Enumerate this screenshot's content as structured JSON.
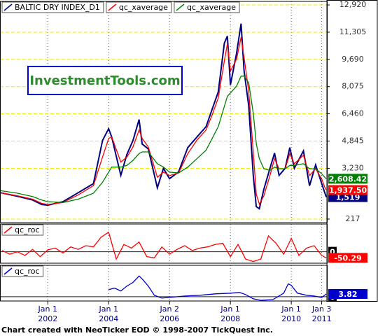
{
  "chart_data": [
    {
      "type": "line",
      "xlim": [
        2000.43,
        2011.17
      ],
      "ylim": [
        7,
        13130
      ],
      "grid": true,
      "yticks": [
        {
          "value": 217,
          "label": "217"
        },
        {
          "value": 3230,
          "label": "3,230"
        },
        {
          "value": 4845,
          "label": "4,845"
        },
        {
          "value": 6460,
          "label": "6,460"
        },
        {
          "value": 8075,
          "label": "8,075"
        },
        {
          "value": 9690,
          "label": "9,690"
        },
        {
          "value": 11305,
          "label": "11,305"
        },
        {
          "value": 12920,
          "label": "12,920"
        }
      ],
      "xticks": [
        {
          "value": 2002.0,
          "label": [
            "Jan 1",
            "2002"
          ]
        },
        {
          "value": 2004.0,
          "label": [
            "Jan 1",
            "2004"
          ]
        },
        {
          "value": 2006.0,
          "label": [
            "Jan 2",
            "2006"
          ]
        },
        {
          "value": 2008.0,
          "label": [
            "Jan 1",
            "2008"
          ]
        },
        {
          "value": 2010.0,
          "label": [
            "Jan 1",
            "2010"
          ]
        },
        {
          "value": 2011.0,
          "label": [
            "Jan 3",
            "2011"
          ]
        }
      ],
      "watermark": "InvestmentTools.com",
      "x": [
        2000.45,
        2001.0,
        2001.5,
        2001.8,
        2002.0,
        2002.5,
        2003.0,
        2003.5,
        2003.8,
        2004.0,
        2004.1,
        2004.4,
        2004.6,
        2004.8,
        2005.0,
        2005.1,
        2005.3,
        2005.6,
        2005.8,
        2006.0,
        2006.3,
        2006.6,
        2006.9,
        2007.2,
        2007.4,
        2007.6,
        2007.8,
        2007.9,
        2008.0,
        2008.2,
        2008.35,
        2008.45,
        2008.6,
        2008.75,
        2008.85,
        2008.95,
        2009.1,
        2009.3,
        2009.45,
        2009.6,
        2009.8,
        2009.95,
        2010.1,
        2010.4,
        2010.6,
        2010.8,
        2011.0,
        2011.1,
        2011.15
      ],
      "series": [
        {
          "name": "BALTIC DRY INDEX_D1",
          "color": "#000080",
          "last_label": "1,519",
          "values": [
            1780,
            1570,
            1350,
            1080,
            1040,
            1250,
            1780,
            2320,
            4880,
            5580,
            5080,
            2810,
            4050,
            4880,
            6120,
            4670,
            4380,
            2070,
            3230,
            2610,
            3020,
            4460,
            5080,
            5700,
            6730,
            7760,
            10650,
            11070,
            8180,
            10040,
            11810,
            9000,
            6940,
            2810,
            955,
            830,
            1990,
            3230,
            4130,
            2810,
            3230,
            4460,
            3230,
            4260,
            2190,
            3430,
            2320,
            1780,
            1519
          ]
        },
        {
          "name": "qc_xaverage",
          "color": "#ff0000",
          "last_label": "1,937.50",
          "values": [
            1780,
            1600,
            1400,
            1150,
            1080,
            1200,
            1650,
            2200,
            3900,
            5000,
            5100,
            3600,
            3900,
            4500,
            5500,
            5000,
            4500,
            2700,
            3000,
            2800,
            2950,
            4100,
            4900,
            5500,
            6400,
            7400,
            9600,
            10600,
            9000,
            9700,
            11000,
            9800,
            7800,
            4200,
            1700,
            1100,
            1600,
            2800,
            3800,
            3200,
            3200,
            4100,
            3500,
            4000,
            2800,
            3200,
            2600,
            2100,
            1937.5
          ]
        },
        {
          "name": "qc_xaverage",
          "color": "#008000",
          "last_label": "2,608.42",
          "values": [
            1900,
            1750,
            1550,
            1350,
            1250,
            1200,
            1400,
            1750,
            2400,
            3000,
            3300,
            3300,
            3400,
            3700,
            4100,
            4200,
            4200,
            3500,
            3300,
            3000,
            2950,
            3300,
            3800,
            4300,
            5000,
            5700,
            6900,
            7500,
            7700,
            8100,
            8700,
            8700,
            8300,
            6500,
            4700,
            3800,
            3200,
            3100,
            3300,
            3200,
            3200,
            3400,
            3400,
            3500,
            3200,
            3200,
            2900,
            2700,
            2608.42
          ]
        }
      ]
    },
    {
      "type": "line",
      "xlim": [
        2000.43,
        2011.17
      ],
      "ylim": [
        -94,
        228
      ],
      "grid": false,
      "yticks": [
        0
      ],
      "x": [
        2000.5,
        2000.75,
        2001.0,
        2001.25,
        2001.5,
        2001.75,
        2002.0,
        2002.25,
        2002.5,
        2002.75,
        2003.0,
        2003.25,
        2003.5,
        2003.75,
        2004.0,
        2004.25,
        2004.5,
        2004.75,
        2005.0,
        2005.25,
        2005.5,
        2005.75,
        2006.0,
        2006.25,
        2006.5,
        2006.75,
        2007.0,
        2007.25,
        2007.5,
        2007.75,
        2008.0,
        2008.25,
        2008.5,
        2008.75,
        2009.0,
        2009.25,
        2009.5,
        2009.75,
        2010.0,
        2010.25,
        2010.5,
        2010.75,
        2011.0,
        2011.15
      ],
      "series": [
        {
          "name": "qc_roc",
          "color": "#ff0000",
          "values": [
            10,
            -20,
            0,
            -30,
            20,
            -40,
            15,
            30,
            -10,
            40,
            20,
            50,
            40,
            120,
            160,
            -60,
            60,
            30,
            80,
            -40,
            -50,
            40,
            -20,
            20,
            50,
            10,
            30,
            40,
            60,
            70,
            -40,
            60,
            -60,
            -80,
            -60,
            130,
            70,
            -20,
            110,
            -30,
            30,
            50,
            -30,
            -50.29
          ]
        }
      ]
    },
    {
      "type": "line",
      "xlim": [
        2000.43,
        2011.17
      ],
      "ylim": [
        -6,
        44
      ],
      "grid": false,
      "yticks": [
        0
      ],
      "x": [
        2004.0,
        2004.2,
        2004.4,
        2004.6,
        2004.8,
        2005.0,
        2005.1,
        2005.3,
        2005.5,
        2005.75,
        2006.0,
        2006.5,
        2007.0,
        2007.5,
        2008.0,
        2008.3,
        2008.5,
        2008.75,
        2009.0,
        2009.4,
        2009.75,
        2009.9,
        2010.0,
        2010.2,
        2010.5,
        2010.75,
        2011.0,
        2011.15
      ],
      "series": [
        {
          "name": "qc_roc",
          "color": "#0000cc",
          "values": [
            10,
            12,
            8,
            15,
            20,
            29,
            25,
            15,
            2,
            -2,
            -1,
            1,
            2,
            4,
            5,
            6,
            3,
            -3,
            -5,
            -4,
            5,
            18,
            16,
            5,
            2,
            1,
            -1,
            3.82
          ]
        }
      ]
    }
  ],
  "footer": "Chart created with NeoTicker EOD © 1998-2007 TickQuest Inc."
}
